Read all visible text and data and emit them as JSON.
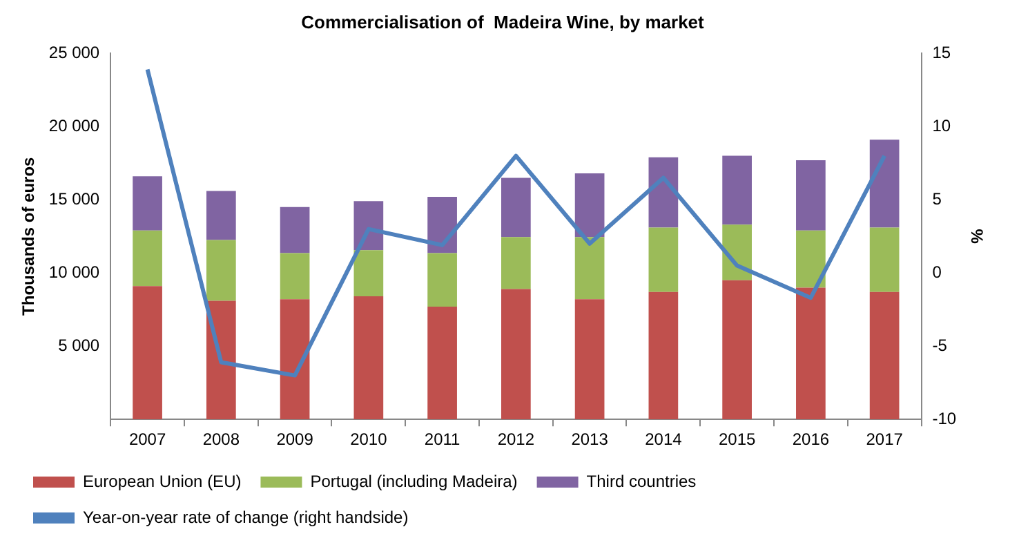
{
  "chart_data": {
    "type": "bar",
    "stacked": true,
    "title": "Commercialisation of  Madeira Wine, by market",
    "categories": [
      "2007",
      "2008",
      "2009",
      "2010",
      "2011",
      "2012",
      "2013",
      "2014",
      "2015",
      "2016",
      "2017"
    ],
    "series": [
      {
        "name": "European Union (EU)",
        "color": "#c0504d",
        "values": [
          9100,
          8100,
          8200,
          8400,
          7700,
          8900,
          8200,
          8700,
          9500,
          9000,
          8700
        ]
      },
      {
        "name": "Portugal (including Madeira)",
        "color": "#9bbb59",
        "values": [
          3800,
          4150,
          3150,
          3150,
          3650,
          3550,
          4250,
          4400,
          3800,
          3900,
          4400
        ]
      },
      {
        "name": "Third countries",
        "color": "#8064a2",
        "values": [
          3700,
          3350,
          3150,
          3350,
          3850,
          4050,
          4350,
          4800,
          4700,
          4800,
          6000
        ]
      },
      {
        "name": "Year-on-year rate of change (right handside)",
        "type": "line",
        "axis": "y2",
        "color": "#4f81bd",
        "marker": "none",
        "values": [
          13.9,
          -6.1,
          -7.0,
          3.0,
          1.9,
          8.0,
          2.0,
          6.5,
          0.5,
          -1.7,
          8.0
        ]
      }
    ],
    "ylabel": "Thousands of euros",
    "y2label": "%",
    "ylim": [
      0,
      25000
    ],
    "yticks": [
      {
        "value": 0,
        "label": null
      },
      {
        "value": 5000,
        "label": "5 000"
      },
      {
        "value": 10000,
        "label": "10 000"
      },
      {
        "value": 15000,
        "label": "15 000"
      },
      {
        "value": 20000,
        "label": "20 000"
      },
      {
        "value": 25000,
        "label": "25 000"
      }
    ],
    "y2lim": [
      -10,
      15
    ],
    "y2ticks": [
      -10,
      -5,
      0,
      5,
      10,
      15
    ],
    "grid": false,
    "legend": "bottom"
  }
}
